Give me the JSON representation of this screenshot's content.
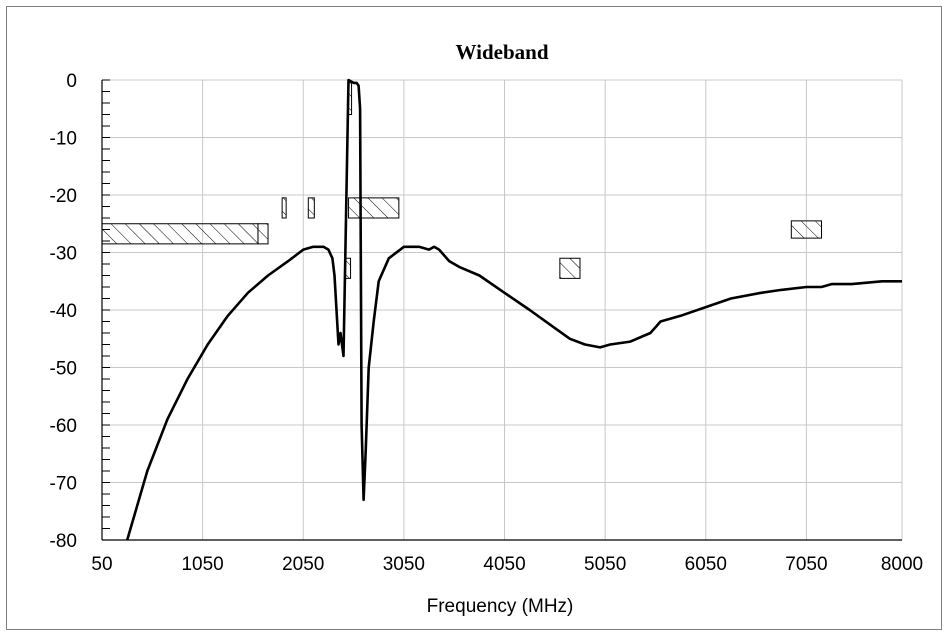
{
  "chart_data": {
    "type": "line",
    "title": "Wideband",
    "xlabel": "Frequency (MHz)",
    "ylabel": "",
    "xlim": [
      50,
      8000
    ],
    "ylim": [
      -80,
      0
    ],
    "x_ticks": [
      50,
      1050,
      2050,
      3050,
      4050,
      5050,
      6050,
      7050,
      8000
    ],
    "y_ticks": [
      0,
      -10,
      -20,
      -30,
      -40,
      -50,
      -60,
      -70,
      -80
    ],
    "grid": true,
    "series": [
      {
        "x": [
          300,
          500,
          700,
          900,
          1100,
          1300,
          1500,
          1700,
          1900,
          2050,
          2150,
          2250,
          2300,
          2340,
          2360,
          2380,
          2400,
          2420,
          2450,
          2500,
          2550,
          2580,
          2600,
          2615,
          2630,
          2650,
          2670,
          2700,
          2750,
          2800,
          2900,
          3050,
          3200,
          3300,
          3350,
          3400,
          3500,
          3600,
          3800,
          4050,
          4300,
          4500,
          4700,
          4850,
          5000,
          5100,
          5300,
          5500,
          5550,
          5600,
          5800,
          6050,
          6300,
          6600,
          6800,
          7050,
          7200,
          7300,
          7500,
          7800,
          8000
        ],
        "y": [
          -80,
          -68,
          -59,
          -52,
          -46,
          -41,
          -37,
          -34,
          -31.5,
          -29.5,
          -29,
          -29,
          -29.5,
          -31,
          -34,
          -40,
          -46,
          -44,
          -48,
          0,
          -0.5,
          -0.5,
          -1,
          -5,
          -60,
          -73,
          -65,
          -50,
          -42,
          -35,
          -31,
          -29,
          -29,
          -29.5,
          -29,
          -29.5,
          -31.5,
          -32.5,
          -34,
          -37,
          -40,
          -42.5,
          -45,
          -46,
          -46.5,
          -46,
          -45.5,
          -44,
          -43,
          -42,
          -41,
          -39.5,
          -38,
          -37,
          -36.5,
          -36,
          -36,
          -35.5,
          -35.5,
          -35,
          -35
        ]
      }
    ],
    "annotations": [
      {
        "type": "hatched_box",
        "x": [
          50,
          1600
        ],
        "y": [
          -28.5,
          -25
        ]
      },
      {
        "type": "hatched_box",
        "x": [
          1600,
          1700
        ],
        "y": [
          -28.5,
          -25
        ]
      },
      {
        "type": "hatched_box",
        "x": [
          1840,
          1880
        ],
        "y": [
          -24,
          -20.5
        ]
      },
      {
        "type": "hatched_box",
        "x": [
          2100,
          2160
        ],
        "y": [
          -24,
          -20.5
        ]
      },
      {
        "type": "hatched_box",
        "x": [
          2500,
          2530
        ],
        "y": [
          -0.5,
          -6
        ]
      },
      {
        "type": "hatched_box",
        "x": [
          2460,
          2520
        ],
        "y": [
          -34.5,
          -31
        ]
      },
      {
        "type": "hatched_box",
        "x": [
          2500,
          3000
        ],
        "y": [
          -24,
          -20.5
        ]
      },
      {
        "type": "hatched_box",
        "x": [
          4600,
          4800
        ],
        "y": [
          -34.5,
          -31
        ]
      },
      {
        "type": "hatched_box",
        "x": [
          6900,
          7200
        ],
        "y": [
          -27.5,
          -24.5
        ]
      }
    ]
  }
}
